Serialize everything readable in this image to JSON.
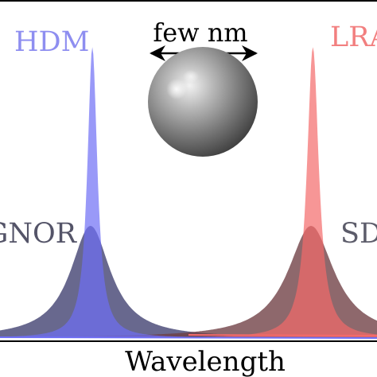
{
  "chart_data": {
    "type": "area",
    "xlabel": "Wavelength",
    "ylabel": "",
    "xlim": [
      0,
      100
    ],
    "ylim": [
      0,
      1
    ],
    "grid": false,
    "legend": "none",
    "annotation": "few nm",
    "series": [
      {
        "name": "HDM",
        "kind": "narrow",
        "center": 24.5,
        "width": 1.6,
        "peak": 0.96,
        "color": "#6e6ef5"
      },
      {
        "name": "LRA",
        "kind": "narrow",
        "center": 83.0,
        "width": 1.9,
        "peak": 0.96,
        "color": "#f36a6a"
      },
      {
        "name": "GNOR",
        "kind": "broad",
        "center": 24.0,
        "width": 6.5,
        "peak": 0.37,
        "color": "#3e3e6e"
      },
      {
        "name": "SD",
        "kind": "broad",
        "center": 82.5,
        "width": 7.5,
        "peak": 0.37,
        "color": "#6e3e42"
      }
    ],
    "labels": {
      "hdm": "HDM",
      "lra": "LRA",
      "gnor": "GNOR",
      "sd": "SD"
    }
  }
}
